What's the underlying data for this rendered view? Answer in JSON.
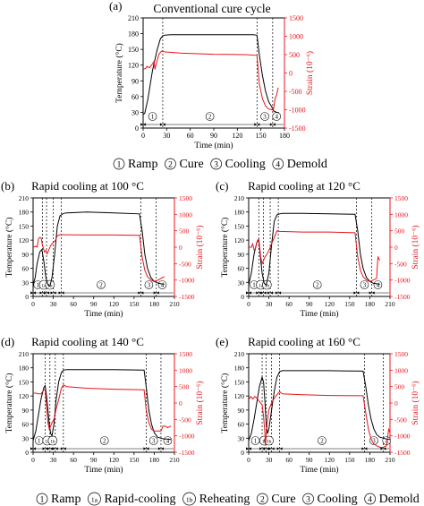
{
  "colors": {
    "temperature": "#000000",
    "strain": "#e8141b"
  },
  "legend_top": {
    "items": [
      {
        "num": "1",
        "label": "Ramp"
      },
      {
        "num": "2",
        "label": "Cure"
      },
      {
        "num": "3",
        "label": "Cooling"
      },
      {
        "num": "4",
        "label": "Demold"
      }
    ]
  },
  "legend_bottom": {
    "items": [
      {
        "num": "1",
        "label": "Ramp"
      },
      {
        "num": "1a",
        "label": "Rapid-cooling"
      },
      {
        "num": "1b",
        "label": "Reheating"
      },
      {
        "num": "2",
        "label": "Cure"
      },
      {
        "num": "3",
        "label": "Cooling"
      },
      {
        "num": "4",
        "label": "Demold"
      }
    ]
  },
  "chart_data": [
    {
      "type": "line",
      "panel": "(a)",
      "title": "Conventional cure cycle",
      "xlabel": "Time (min)",
      "ylabel": "Temperature (°C)",
      "y2label": "Strain (10⁻⁶)",
      "xlim": [
        0,
        180
      ],
      "ylim": [
        0,
        210
      ],
      "y2lim": [
        -1500,
        1500
      ],
      "xticks": [
        0,
        30,
        60,
        90,
        120,
        150,
        180
      ],
      "yticks": [
        0,
        30,
        60,
        90,
        120,
        150,
        180,
        210
      ],
      "y2ticks": [
        -1500,
        -1000,
        -500,
        0,
        500,
        1000,
        1500
      ],
      "phase_lines": [
        25,
        145,
        165
      ],
      "phase_labels": [
        {
          "at": 12,
          "text": "1"
        },
        {
          "at": 85,
          "text": "2"
        },
        {
          "at": 155,
          "text": "3"
        },
        {
          "at": 170,
          "text": "4"
        }
      ],
      "series": [
        {
          "axis": "temperature",
          "x": [
            0,
            2,
            6,
            12,
            18,
            22,
            25,
            28,
            35,
            60,
            90,
            120,
            140,
            145,
            148,
            152,
            156,
            160,
            164,
            165,
            166,
            170,
            173
          ],
          "y": [
            26,
            28,
            55,
            110,
            150,
            170,
            176,
            177,
            178,
            178,
            178,
            178,
            178,
            177,
            140,
            100,
            70,
            50,
            40,
            36,
            33,
            30,
            29
          ]
        },
        {
          "axis": "strain",
          "x": [
            0,
            3,
            5,
            8,
            10,
            12,
            14,
            15,
            18,
            20,
            22,
            24,
            26,
            30,
            50,
            90,
            130,
            145,
            148,
            152,
            156,
            160,
            164,
            165,
            166,
            168,
            170,
            172
          ],
          "y": [
            100,
            120,
            180,
            140,
            200,
            250,
            320,
            100,
            350,
            500,
            560,
            600,
            580,
            570,
            540,
            510,
            500,
            480,
            -300,
            -700,
            -900,
            -980,
            -1000,
            -950,
            -1000,
            -700,
            -600,
            -400
          ]
        }
      ]
    },
    {
      "type": "line",
      "panel": "(b)",
      "title": "Rapid cooling at 100 °C",
      "xlabel": "Time (min)",
      "ylabel": "Temperature (°C)",
      "y2label": "Strain (10⁻⁶)",
      "xlim": [
        0,
        210
      ],
      "ylim": [
        0,
        210
      ],
      "y2lim": [
        -1500,
        1500
      ],
      "xticks": [
        0,
        30,
        60,
        90,
        120,
        150,
        180,
        210
      ],
      "yticks": [
        0,
        30,
        60,
        90,
        120,
        150,
        180,
        210
      ],
      "y2ticks": [
        -1500,
        -1000,
        -500,
        0,
        500,
        1000,
        1500
      ],
      "phase_lines": [
        14,
        20,
        30,
        42,
        160,
        183
      ],
      "phase_labels": [
        {
          "at": 7,
          "text": "1"
        },
        {
          "at": 16,
          "text": "1a"
        },
        {
          "at": 25,
          "text": "1b"
        },
        {
          "at": 101,
          "text": "2"
        },
        {
          "at": 172,
          "text": "3"
        },
        {
          "at": 192,
          "text": "4"
        }
      ],
      "series": [
        {
          "axis": "temperature",
          "x": [
            0,
            3,
            6,
            10,
            13,
            16,
            19,
            22,
            25,
            28,
            32,
            36,
            40,
            45,
            50,
            80,
            120,
            158,
            162,
            166,
            170,
            175,
            180,
            183,
            186,
            190,
            195
          ],
          "y": [
            25,
            40,
            70,
            95,
            100,
            75,
            40,
            25,
            22,
            40,
            90,
            150,
            172,
            177,
            178,
            180,
            178,
            176,
            140,
            90,
            60,
            40,
            32,
            30,
            28,
            27,
            26
          ]
        },
        {
          "axis": "strain",
          "x": [
            0,
            4,
            6,
            8,
            10,
            12,
            14,
            17,
            19,
            21,
            23,
            26,
            28,
            30,
            33,
            36,
            40,
            45,
            80,
            120,
            158,
            162,
            166,
            170,
            175,
            180,
            183,
            186,
            190,
            195
          ],
          "y": [
            0,
            30,
            0,
            250,
            300,
            280,
            60,
            -150,
            -100,
            -200,
            -100,
            50,
            100,
            150,
            200,
            350,
            380,
            380,
            370,
            370,
            360,
            -300,
            -700,
            -900,
            -1000,
            -1050,
            -1020,
            -1000,
            -950,
            -900
          ]
        }
      ]
    },
    {
      "type": "line",
      "panel": "(c)",
      "title": "Rapid cooling at 120 °C",
      "xlabel": "Time (min)",
      "ylabel": "Temperature (°C)",
      "y2label": "Strain (10⁻⁶)",
      "xlim": [
        0,
        210
      ],
      "ylim": [
        0,
        210
      ],
      "y2lim": [
        -1500,
        1500
      ],
      "xticks": [
        0,
        30,
        60,
        90,
        120,
        150,
        180,
        210
      ],
      "yticks": [
        0,
        30,
        60,
        90,
        120,
        150,
        180,
        210
      ],
      "y2ticks": [
        -1500,
        -1000,
        -500,
        0,
        500,
        1000,
        1500
      ],
      "phase_lines": [
        15,
        22,
        32,
        44,
        160,
        183
      ],
      "phase_labels": [
        {
          "at": 8,
          "text": "1"
        },
        {
          "at": 18,
          "text": "1a"
        },
        {
          "at": 27,
          "text": "1b"
        },
        {
          "at": 102,
          "text": "2"
        },
        {
          "at": 172,
          "text": "3"
        },
        {
          "at": 192,
          "text": "4"
        }
      ],
      "series": [
        {
          "axis": "temperature",
          "x": [
            0,
            4,
            8,
            12,
            15,
            17,
            20,
            23,
            26,
            30,
            34,
            38,
            42,
            46,
            50,
            80,
            120,
            158,
            162,
            166,
            170,
            175,
            180,
            185,
            190,
            195
          ],
          "y": [
            25,
            50,
            90,
            115,
            120,
            90,
            50,
            28,
            24,
            50,
            110,
            160,
            174,
            176,
            177,
            177,
            176,
            175,
            140,
            90,
            60,
            40,
            32,
            28,
            27,
            26
          ]
        },
        {
          "axis": "strain",
          "x": [
            0,
            4,
            6,
            8,
            10,
            13,
            15,
            18,
            20,
            22,
            24,
            26,
            30,
            34,
            38,
            42,
            46,
            80,
            120,
            158,
            162,
            166,
            170,
            175,
            180,
            185,
            190,
            192,
            195
          ],
          "y": [
            0,
            0,
            100,
            -80,
            -50,
            200,
            250,
            -300,
            -500,
            -400,
            -300,
            -250,
            -100,
            100,
            300,
            500,
            480,
            460,
            460,
            440,
            -300,
            -700,
            -900,
            -1000,
            -1050,
            -1000,
            -950,
            -300,
            -400
          ]
        }
      ]
    },
    {
      "type": "line",
      "panel": "(d)",
      "title": "Rapid cooling at 140 °C",
      "xlabel": "Time (min)",
      "ylabel": "Temperature (°C)",
      "y2label": "Strain (10⁻⁶)",
      "xlim": [
        0,
        210
      ],
      "ylim": [
        0,
        210
      ],
      "y2lim": [
        -1500,
        1500
      ],
      "xticks": [
        0,
        30,
        60,
        90,
        120,
        150,
        180,
        210
      ],
      "yticks": [
        0,
        30,
        60,
        90,
        120,
        150,
        180,
        210
      ],
      "y2ticks": [
        -1500,
        -1000,
        -500,
        0,
        500,
        1000,
        1500
      ],
      "phase_lines": [
        18,
        25,
        33,
        45,
        168,
        190
      ],
      "phase_labels": [
        {
          "at": 9,
          "text": "1"
        },
        {
          "at": 21,
          "text": "1a"
        },
        {
          "at": 29,
          "text": "1b"
        },
        {
          "at": 106,
          "text": "2"
        },
        {
          "at": 179,
          "text": "3"
        },
        {
          "at": 200,
          "text": "4"
        }
      ],
      "series": [
        {
          "axis": "temperature",
          "x": [
            0,
            4,
            8,
            12,
            16,
            18,
            20,
            22,
            24,
            26,
            28,
            31,
            34,
            38,
            42,
            45,
            50,
            80,
            120,
            165,
            168,
            172,
            176,
            180,
            185,
            190,
            195,
            200,
            205
          ],
          "y": [
            25,
            45,
            80,
            115,
            138,
            142,
            120,
            90,
            60,
            40,
            35,
            60,
            110,
            150,
            170,
            175,
            176,
            176,
            176,
            175,
            140,
            90,
            60,
            42,
            32,
            30,
            28,
            28,
            27
          ]
        },
        {
          "axis": "strain",
          "x": [
            0,
            4,
            8,
            12,
            16,
            18,
            20,
            22,
            24,
            26,
            28,
            31,
            34,
            38,
            42,
            45,
            50,
            80,
            120,
            165,
            168,
            172,
            176,
            180,
            185,
            190,
            193,
            196,
            200,
            205
          ],
          "y": [
            300,
            300,
            280,
            280,
            400,
            420,
            -100,
            -600,
            -800,
            -700,
            -600,
            -500,
            -200,
            100,
            450,
            550,
            500,
            450,
            420,
            400,
            -200,
            -600,
            -800,
            -850,
            -850,
            -850,
            -700,
            -700,
            -750,
            -700
          ]
        }
      ]
    },
    {
      "type": "line",
      "panel": "(e)",
      "title": "Rapid cooling at 160 °C",
      "xlabel": "Time (min)",
      "ylabel": "Temperature (°C)",
      "y2label": "Strain (10⁻⁶)",
      "xlim": [
        0,
        210
      ],
      "ylim": [
        0,
        210
      ],
      "y2lim": [
        -1500,
        1500
      ],
      "xticks": [
        0,
        30,
        60,
        90,
        120,
        150,
        180,
        210
      ],
      "yticks": [
        0,
        30,
        60,
        90,
        120,
        150,
        180,
        210
      ],
      "y2ticks": [
        -1500,
        -1000,
        -500,
        0,
        500,
        1000,
        1500
      ],
      "phase_lines": [
        20,
        26,
        34,
        46,
        172,
        200
      ],
      "phase_labels": [
        {
          "at": 10,
          "text": "1"
        },
        {
          "at": 23,
          "text": "1a"
        },
        {
          "at": 30,
          "text": "1b"
        },
        {
          "at": 109,
          "text": "2"
        },
        {
          "at": 186,
          "text": "3"
        },
        {
          "at": 205,
          "text": "4"
        }
      ],
      "series": [
        {
          "axis": "temperature",
          "x": [
            0,
            4,
            8,
            12,
            16,
            20,
            22,
            24,
            26,
            28,
            30,
            34,
            38,
            42,
            46,
            50,
            80,
            120,
            170,
            174,
            178,
            182,
            186,
            190,
            195,
            200,
            205,
            210
          ],
          "y": [
            25,
            40,
            70,
            105,
            140,
            160,
            150,
            110,
            60,
            40,
            50,
            90,
            130,
            160,
            172,
            174,
            174,
            174,
            173,
            140,
            100,
            70,
            50,
            38,
            32,
            30,
            28,
            27
          ]
        },
        {
          "axis": "strain",
          "x": [
            0,
            3,
            6,
            9,
            12,
            16,
            20,
            22,
            24,
            25,
            26,
            28,
            30,
            34,
            38,
            42,
            46,
            50,
            80,
            120,
            170,
            174,
            178,
            182,
            186,
            190,
            195,
            200,
            205,
            208,
            210
          ],
          "y": [
            100,
            200,
            120,
            200,
            150,
            50,
            -50,
            -400,
            -900,
            -1300,
            -1000,
            -500,
            -200,
            0,
            150,
            250,
            350,
            280,
            250,
            230,
            220,
            -300,
            -800,
            -1100,
            -1250,
            -1300,
            -1350,
            -1350,
            -1300,
            -800,
            -900
          ]
        }
      ]
    }
  ]
}
